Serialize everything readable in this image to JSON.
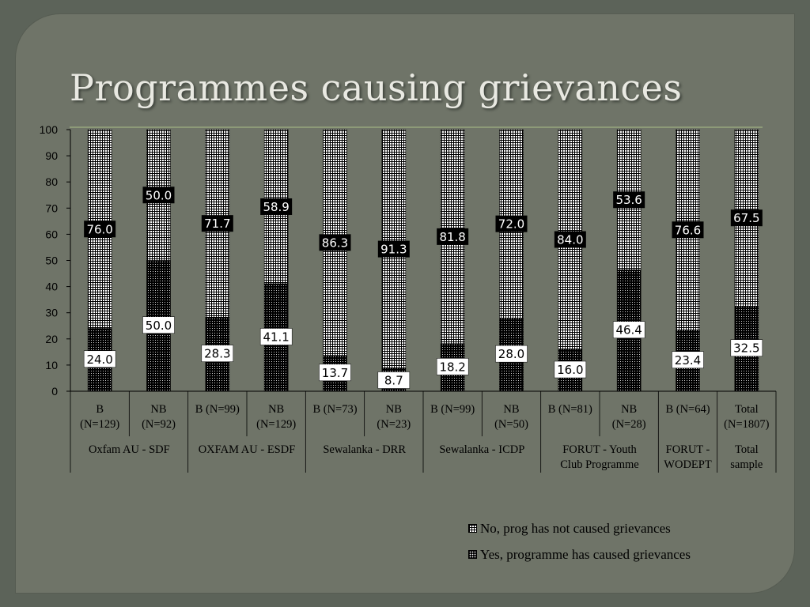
{
  "slide": {
    "title": "Programmes causing grievances"
  },
  "chart_data": {
    "type": "bar",
    "stacked": true,
    "ylim": [
      0,
      100
    ],
    "yticks": [
      0,
      10,
      20,
      30,
      40,
      50,
      60,
      70,
      80,
      90,
      100
    ],
    "categories": [
      [
        "B",
        "(N=129)"
      ],
      [
        "NB",
        "(N=92)"
      ],
      [
        "B (N=99)"
      ],
      [
        "NB",
        "(N=129)"
      ],
      [
        "B (N=73)"
      ],
      [
        "NB",
        "(N=23)"
      ],
      [
        "B (N=99)"
      ],
      [
        "NB",
        "(N=50)"
      ],
      [
        "B (N=81)"
      ],
      [
        "NB",
        "(N=28)"
      ],
      [
        "B (N=64)"
      ],
      [
        "Total",
        "(N=1807)"
      ]
    ],
    "groups": [
      {
        "label": [
          "Oxfam AU - SDF"
        ],
        "span": 2
      },
      {
        "label": [
          "OXFAM AU - ESDF"
        ],
        "span": 2
      },
      {
        "label": [
          "Sewalanka - DRR"
        ],
        "span": 2
      },
      {
        "label": [
          "Sewalanka - ICDP"
        ],
        "span": 2
      },
      {
        "label": [
          "FORUT - Youth",
          "Club Programme"
        ],
        "span": 2
      },
      {
        "label": [
          "FORUT -",
          "WODEPT"
        ],
        "span": 1
      },
      {
        "label": [
          "Total",
          "sample"
        ],
        "span": 1
      }
    ],
    "series": [
      {
        "name": "Yes, programme has caused grievances",
        "values": [
          24.0,
          50.0,
          28.3,
          41.1,
          13.7,
          8.7,
          18.2,
          28.0,
          16.0,
          46.4,
          23.4,
          32.5
        ],
        "labels": [
          "24.0",
          "50.0",
          "28.3",
          "41.1",
          "13.7",
          "8.7",
          "18.2",
          "28.0",
          "16.0",
          "46.4",
          "23.4",
          "32.5"
        ]
      },
      {
        "name": "No, prog has not caused grievances",
        "values": [
          76.0,
          50.0,
          71.7,
          58.9,
          86.3,
          91.3,
          81.8,
          72.0,
          84.0,
          53.6,
          76.6,
          67.5
        ],
        "labels": [
          "76.0",
          "50.0",
          "71.7",
          "58.9",
          "86.3",
          "91.3",
          "81.8",
          "72.0",
          "84.0",
          "53.6",
          "76.6",
          "67.5"
        ]
      }
    ],
    "legend": {
      "position": "bottom-right",
      "items": [
        "No, prog has not caused grievances",
        "Yes, programme has caused grievances"
      ]
    }
  }
}
